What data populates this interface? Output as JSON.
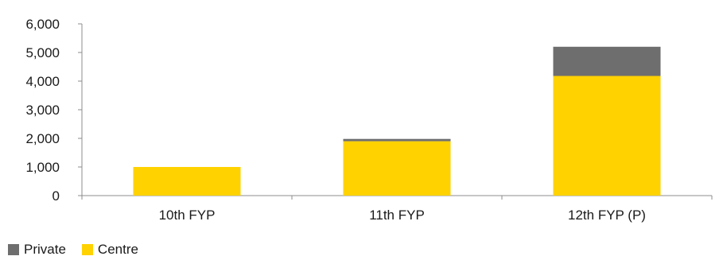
{
  "chart_data": {
    "type": "bar",
    "stacked": true,
    "categories": [
      "10th FYP",
      "11th FYP",
      "12th FYP (P)"
    ],
    "series": [
      {
        "name": "Centre",
        "values": [
          1000,
          1900,
          4180
        ],
        "color": "#FFD200"
      },
      {
        "name": "Private",
        "values": [
          0,
          80,
          1020
        ],
        "color": "#6E6E6E"
      }
    ],
    "ylim": [
      0,
      6000
    ],
    "yticks": [
      "0",
      "1,000",
      "2,000",
      "3,000",
      "4,000",
      "5,000",
      "6,000"
    ],
    "ytick_values": [
      0,
      1000,
      2000,
      3000,
      4000,
      5000,
      6000
    ],
    "grid": false,
    "legend_position": "bottom-left"
  },
  "legend": {
    "items": [
      {
        "label": "Private",
        "color": "#6E6E6E"
      },
      {
        "label": "Centre",
        "color": "#FFD200"
      }
    ]
  }
}
